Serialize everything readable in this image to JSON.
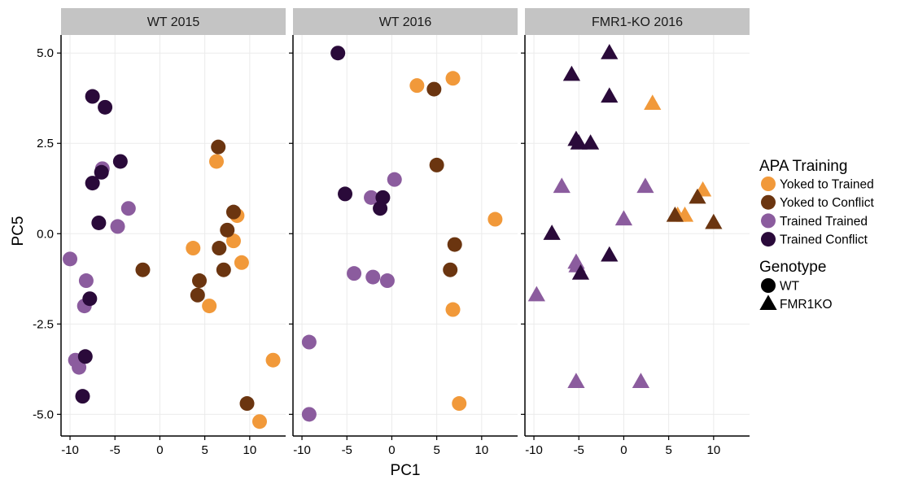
{
  "chart_data": {
    "type": "scatter",
    "facets": [
      "WT 2015",
      "WT 2016",
      "FMR1-KO 2016"
    ],
    "xlabel": "PC1",
    "ylabel": "PC5",
    "xlim": [
      -11,
      14
    ],
    "ylim": [
      -5.6,
      5.5
    ],
    "x_ticks": [
      -10,
      -5,
      0,
      5,
      10
    ],
    "y_ticks": [
      5.0,
      2.5,
      0.0,
      -2.5,
      -5.0
    ],
    "y_tick_labels": [
      "5.0",
      "2.5",
      "0.0",
      "-2.5",
      "-5.0"
    ],
    "x_tick_labels": [
      "-10",
      "-5",
      "0",
      "5",
      "10"
    ],
    "grid": true,
    "legend_position": "right",
    "legend": {
      "color_title": "APA Training",
      "color_items": [
        {
          "label": "Yoked to Trained",
          "color": "#f1993a"
        },
        {
          "label": "Yoked to Conflict",
          "color": "#6b3510"
        },
        {
          "label": "Trained Trained",
          "color": "#8b5c9e"
        },
        {
          "label": "Trained Conflict",
          "color": "#2a0a3a"
        }
      ],
      "shape_title": "Genotype",
      "shape_items": [
        {
          "label": "WT",
          "shape": "circle"
        },
        {
          "label": "FMR1KO",
          "shape": "triangle"
        }
      ]
    },
    "series": [
      {
        "facet": 0,
        "group": "Yoked to Trained",
        "shape": "circle",
        "points": [
          [
            3.7,
            -0.4
          ],
          [
            6.3,
            2.0
          ],
          [
            8.2,
            -0.2
          ],
          [
            8.6,
            0.5
          ],
          [
            9.1,
            -0.8
          ],
          [
            5.5,
            -2.0
          ],
          [
            11.1,
            -5.2
          ],
          [
            12.6,
            -3.5
          ]
        ]
      },
      {
        "facet": 0,
        "group": "Yoked to Conflict",
        "shape": "circle",
        "points": [
          [
            6.5,
            2.4
          ],
          [
            8.2,
            0.6
          ],
          [
            7.5,
            0.1
          ],
          [
            6.6,
            -0.4
          ],
          [
            7.1,
            -1.0
          ],
          [
            4.4,
            -1.3
          ],
          [
            4.2,
            -1.7
          ],
          [
            -1.9,
            -1.0
          ],
          [
            9.7,
            -4.7
          ]
        ]
      },
      {
        "facet": 0,
        "group": "Trained Trained",
        "shape": "circle",
        "points": [
          [
            -6.4,
            1.8
          ],
          [
            -3.5,
            0.7
          ],
          [
            -4.7,
            0.2
          ],
          [
            -10.0,
            -0.7
          ],
          [
            -8.2,
            -1.3
          ],
          [
            -8.4,
            -2.0
          ],
          [
            -9.4,
            -3.5
          ],
          [
            -9.0,
            -3.7
          ]
        ]
      },
      {
        "facet": 0,
        "group": "Trained Conflict",
        "shape": "circle",
        "points": [
          [
            -7.5,
            3.8
          ],
          [
            -6.1,
            3.5
          ],
          [
            -6.5,
            1.7
          ],
          [
            -4.4,
            2.0
          ],
          [
            -7.5,
            1.4
          ],
          [
            -6.8,
            0.3
          ],
          [
            -7.8,
            -1.8
          ],
          [
            -8.3,
            -3.4
          ],
          [
            -8.6,
            -4.5
          ]
        ]
      },
      {
        "facet": 1,
        "group": "Yoked to Trained",
        "shape": "circle",
        "points": [
          [
            2.8,
            4.1
          ],
          [
            6.8,
            4.3
          ],
          [
            11.5,
            0.4
          ],
          [
            6.8,
            -2.1
          ],
          [
            7.5,
            -4.7
          ]
        ]
      },
      {
        "facet": 1,
        "group": "Yoked to Conflict",
        "shape": "circle",
        "points": [
          [
            4.7,
            4.0
          ],
          [
            5.0,
            1.9
          ],
          [
            7.0,
            -0.3
          ],
          [
            6.5,
            -1.0
          ]
        ]
      },
      {
        "facet": 1,
        "group": "Trained Trained",
        "shape": "circle",
        "points": [
          [
            0.3,
            1.5
          ],
          [
            -2.3,
            1.0
          ],
          [
            -4.2,
            -1.1
          ],
          [
            -2.1,
            -1.2
          ],
          [
            -0.5,
            -1.3
          ],
          [
            -9.2,
            -3.0
          ],
          [
            -9.2,
            -5.0
          ]
        ]
      },
      {
        "facet": 1,
        "group": "Trained Conflict",
        "shape": "circle",
        "points": [
          [
            -6.0,
            5.0
          ],
          [
            -5.2,
            1.1
          ],
          [
            -1.0,
            1.0
          ],
          [
            -1.3,
            0.7
          ]
        ]
      },
      {
        "facet": 2,
        "group": "Yoked to Trained",
        "shape": "triangle",
        "points": [
          [
            3.2,
            3.6
          ],
          [
            8.8,
            1.2
          ],
          [
            6.0,
            0.5
          ],
          [
            6.8,
            0.5
          ]
        ]
      },
      {
        "facet": 2,
        "group": "Yoked to Conflict",
        "shape": "triangle",
        "points": [
          [
            8.2,
            1.0
          ],
          [
            5.7,
            0.5
          ],
          [
            10.0,
            0.3
          ]
        ]
      },
      {
        "facet": 2,
        "group": "Trained Trained",
        "shape": "triangle",
        "points": [
          [
            -6.9,
            1.3
          ],
          [
            2.4,
            1.3
          ],
          [
            0.0,
            0.4
          ],
          [
            -5.2,
            -0.9
          ],
          [
            -5.3,
            -0.8
          ],
          [
            -9.7,
            -1.7
          ],
          [
            -5.3,
            -4.1
          ],
          [
            1.9,
            -4.1
          ]
        ]
      },
      {
        "facet": 2,
        "group": "Trained Conflict",
        "shape": "triangle",
        "points": [
          [
            -1.6,
            5.0
          ],
          [
            -5.8,
            4.4
          ],
          [
            -1.6,
            3.8
          ],
          [
            -5.3,
            2.6
          ],
          [
            -5.0,
            2.5
          ],
          [
            -3.7,
            2.5
          ],
          [
            -8.0,
            0.0
          ],
          [
            -1.6,
            -0.6
          ],
          [
            -4.8,
            -1.1
          ]
        ]
      }
    ]
  }
}
